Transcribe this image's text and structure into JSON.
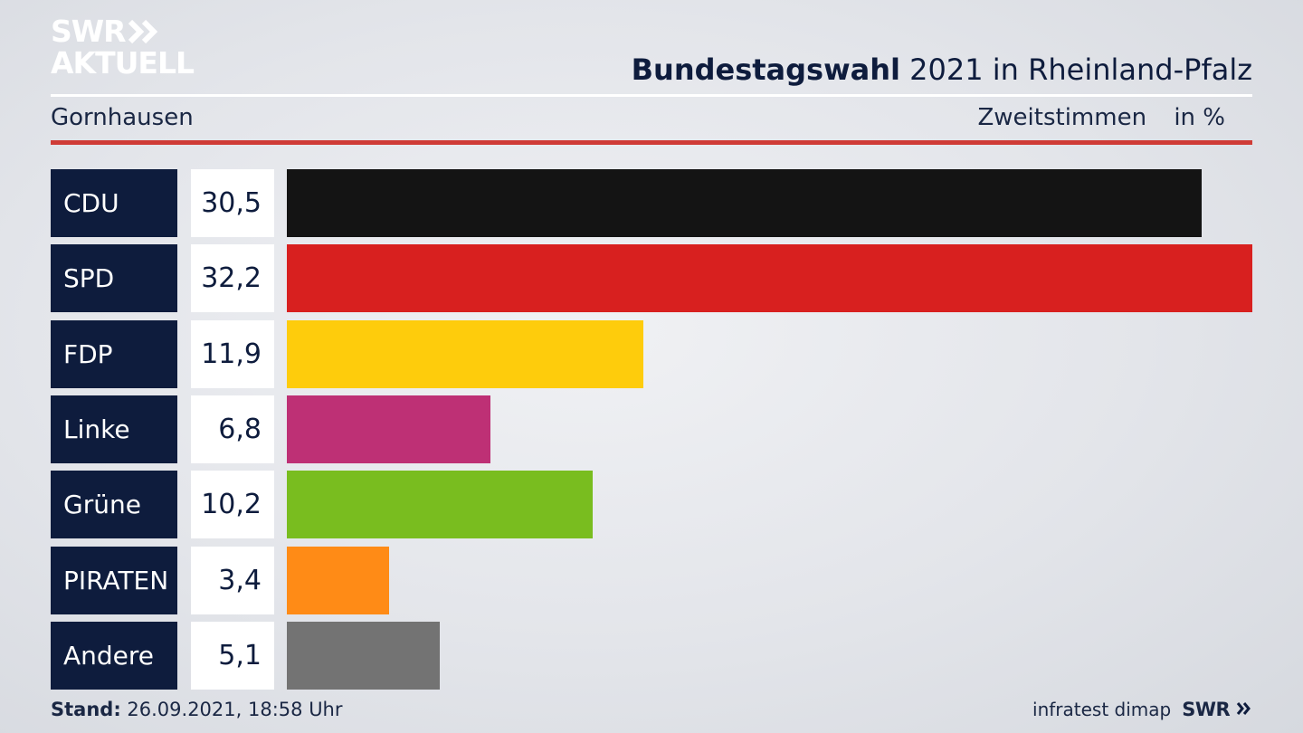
{
  "logo": {
    "line1": "SWR",
    "line2": "AKTUELL"
  },
  "header": {
    "title_bold": "Bundestagswahl",
    "title_rest": "2021 in Rheinland-Pfalz",
    "region": "Gornhausen",
    "metric": "Zweitstimmen",
    "unit": "in %"
  },
  "chart_data": {
    "type": "bar",
    "orientation": "horizontal",
    "title": "Bundestagswahl 2021 in Rheinland-Pfalz",
    "subtitle": "Gornhausen",
    "ylabel": "Zweitstimmen in %",
    "categories": [
      "CDU",
      "SPD",
      "FDP",
      "Linke",
      "Grüne",
      "PIRATEN",
      "Andere"
    ],
    "values": [
      30.5,
      32.2,
      11.9,
      6.8,
      10.2,
      3.4,
      5.1
    ],
    "value_labels": [
      "30,5",
      "32,2",
      "11,9",
      "6,8",
      "10,2",
      "3,4",
      "5,1"
    ],
    "colors": [
      "#141414",
      "#d8201f",
      "#fecc0c",
      "#be3075",
      "#79bd1f",
      "#ff8b16",
      "#737373"
    ],
    "xlim": [
      0,
      32.2
    ],
    "grid": false,
    "legend": "none"
  },
  "footer": {
    "stand_label": "Stand:",
    "stand_value": "26.09.2021, 18:58 Uhr",
    "source": "infratest dimap",
    "brand": "SWR"
  }
}
